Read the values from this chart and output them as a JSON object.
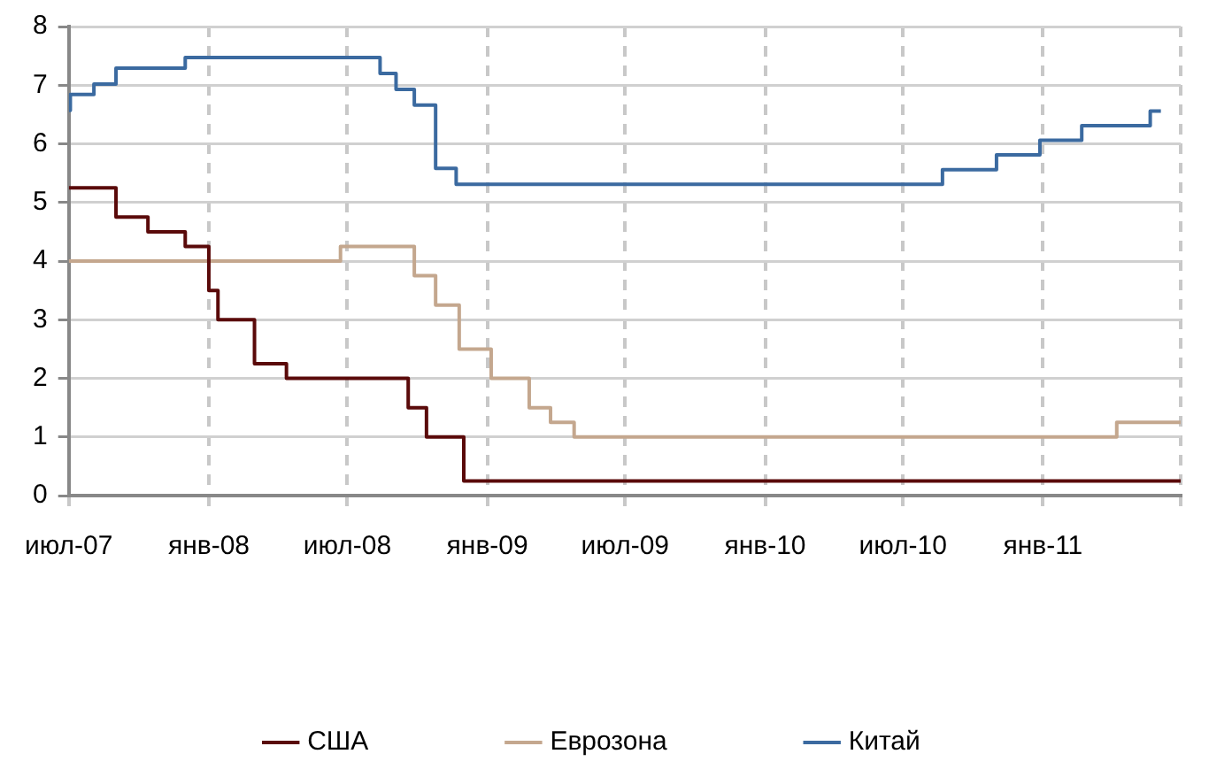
{
  "chart_data": {
    "type": "step",
    "xlim": [
      "2007-07-01",
      "2011-07-01"
    ],
    "xticks": [
      {
        "value": "2007-07-01",
        "label": "июл-07"
      },
      {
        "value": "2008-01-01",
        "label": "янв-08"
      },
      {
        "value": "2008-07-01",
        "label": "июл-08"
      },
      {
        "value": "2009-01-01",
        "label": "янв-09"
      },
      {
        "value": "2009-07-01",
        "label": "июл-09"
      },
      {
        "value": "2010-01-01",
        "label": "янв-10"
      },
      {
        "value": "2010-07-01",
        "label": "июл-10"
      },
      {
        "value": "2011-01-01",
        "label": "янв-11"
      },
      {
        "value": "2011-07-01",
        "label": null
      }
    ],
    "ylim": [
      0,
      8
    ],
    "yticks": [
      0,
      1,
      2,
      3,
      4,
      5,
      6,
      7,
      8
    ],
    "grid": true,
    "legend": "bottom",
    "line_style": "solid",
    "marker": "none",
    "series": [
      {
        "name": "США",
        "color": "#5a0a0a",
        "x": [
          "2007-07-01",
          "2007-09-01",
          "2007-10-13",
          "2007-12-01",
          "2008-01-01",
          "2008-01-13",
          "2008-03-01",
          "2008-04-12",
          "2008-09-19",
          "2008-10-13",
          "2008-12-01",
          "2011-07-01"
        ],
        "values": [
          5.25,
          4.75,
          4.5,
          4.25,
          3.5,
          3.0,
          2.25,
          2.0,
          1.5,
          1.0,
          0.25,
          0.25
        ]
      },
      {
        "name": "Еврозона",
        "color": "#c4a78e",
        "x": [
          "2007-07-01",
          "2008-06-22",
          "2008-09-27",
          "2008-10-25",
          "2008-11-25",
          "2009-01-06",
          "2009-02-25",
          "2009-03-25",
          "2009-04-25",
          "2011-04-08",
          "2011-07-01"
        ],
        "values": [
          4.0,
          4.25,
          3.75,
          3.25,
          2.5,
          2.0,
          1.5,
          1.25,
          1.0,
          1.25,
          1.25
        ]
      },
      {
        "name": "Китай",
        "color": "#3b6aa0",
        "x": [
          "2007-07-01",
          "2007-07-03",
          "2007-08-03",
          "2007-09-01",
          "2007-12-01",
          "2008-08-13",
          "2008-09-03",
          "2008-09-27",
          "2008-10-25",
          "2008-11-21",
          "2010-08-22",
          "2010-11-01",
          "2010-12-28",
          "2011-02-21",
          "2011-05-22",
          "2011-06-05"
        ],
        "values": [
          6.57,
          6.84,
          7.02,
          7.29,
          7.47,
          7.2,
          6.93,
          6.66,
          5.58,
          5.31,
          5.56,
          5.81,
          6.06,
          6.31,
          6.56,
          6.56
        ]
      }
    ]
  }
}
